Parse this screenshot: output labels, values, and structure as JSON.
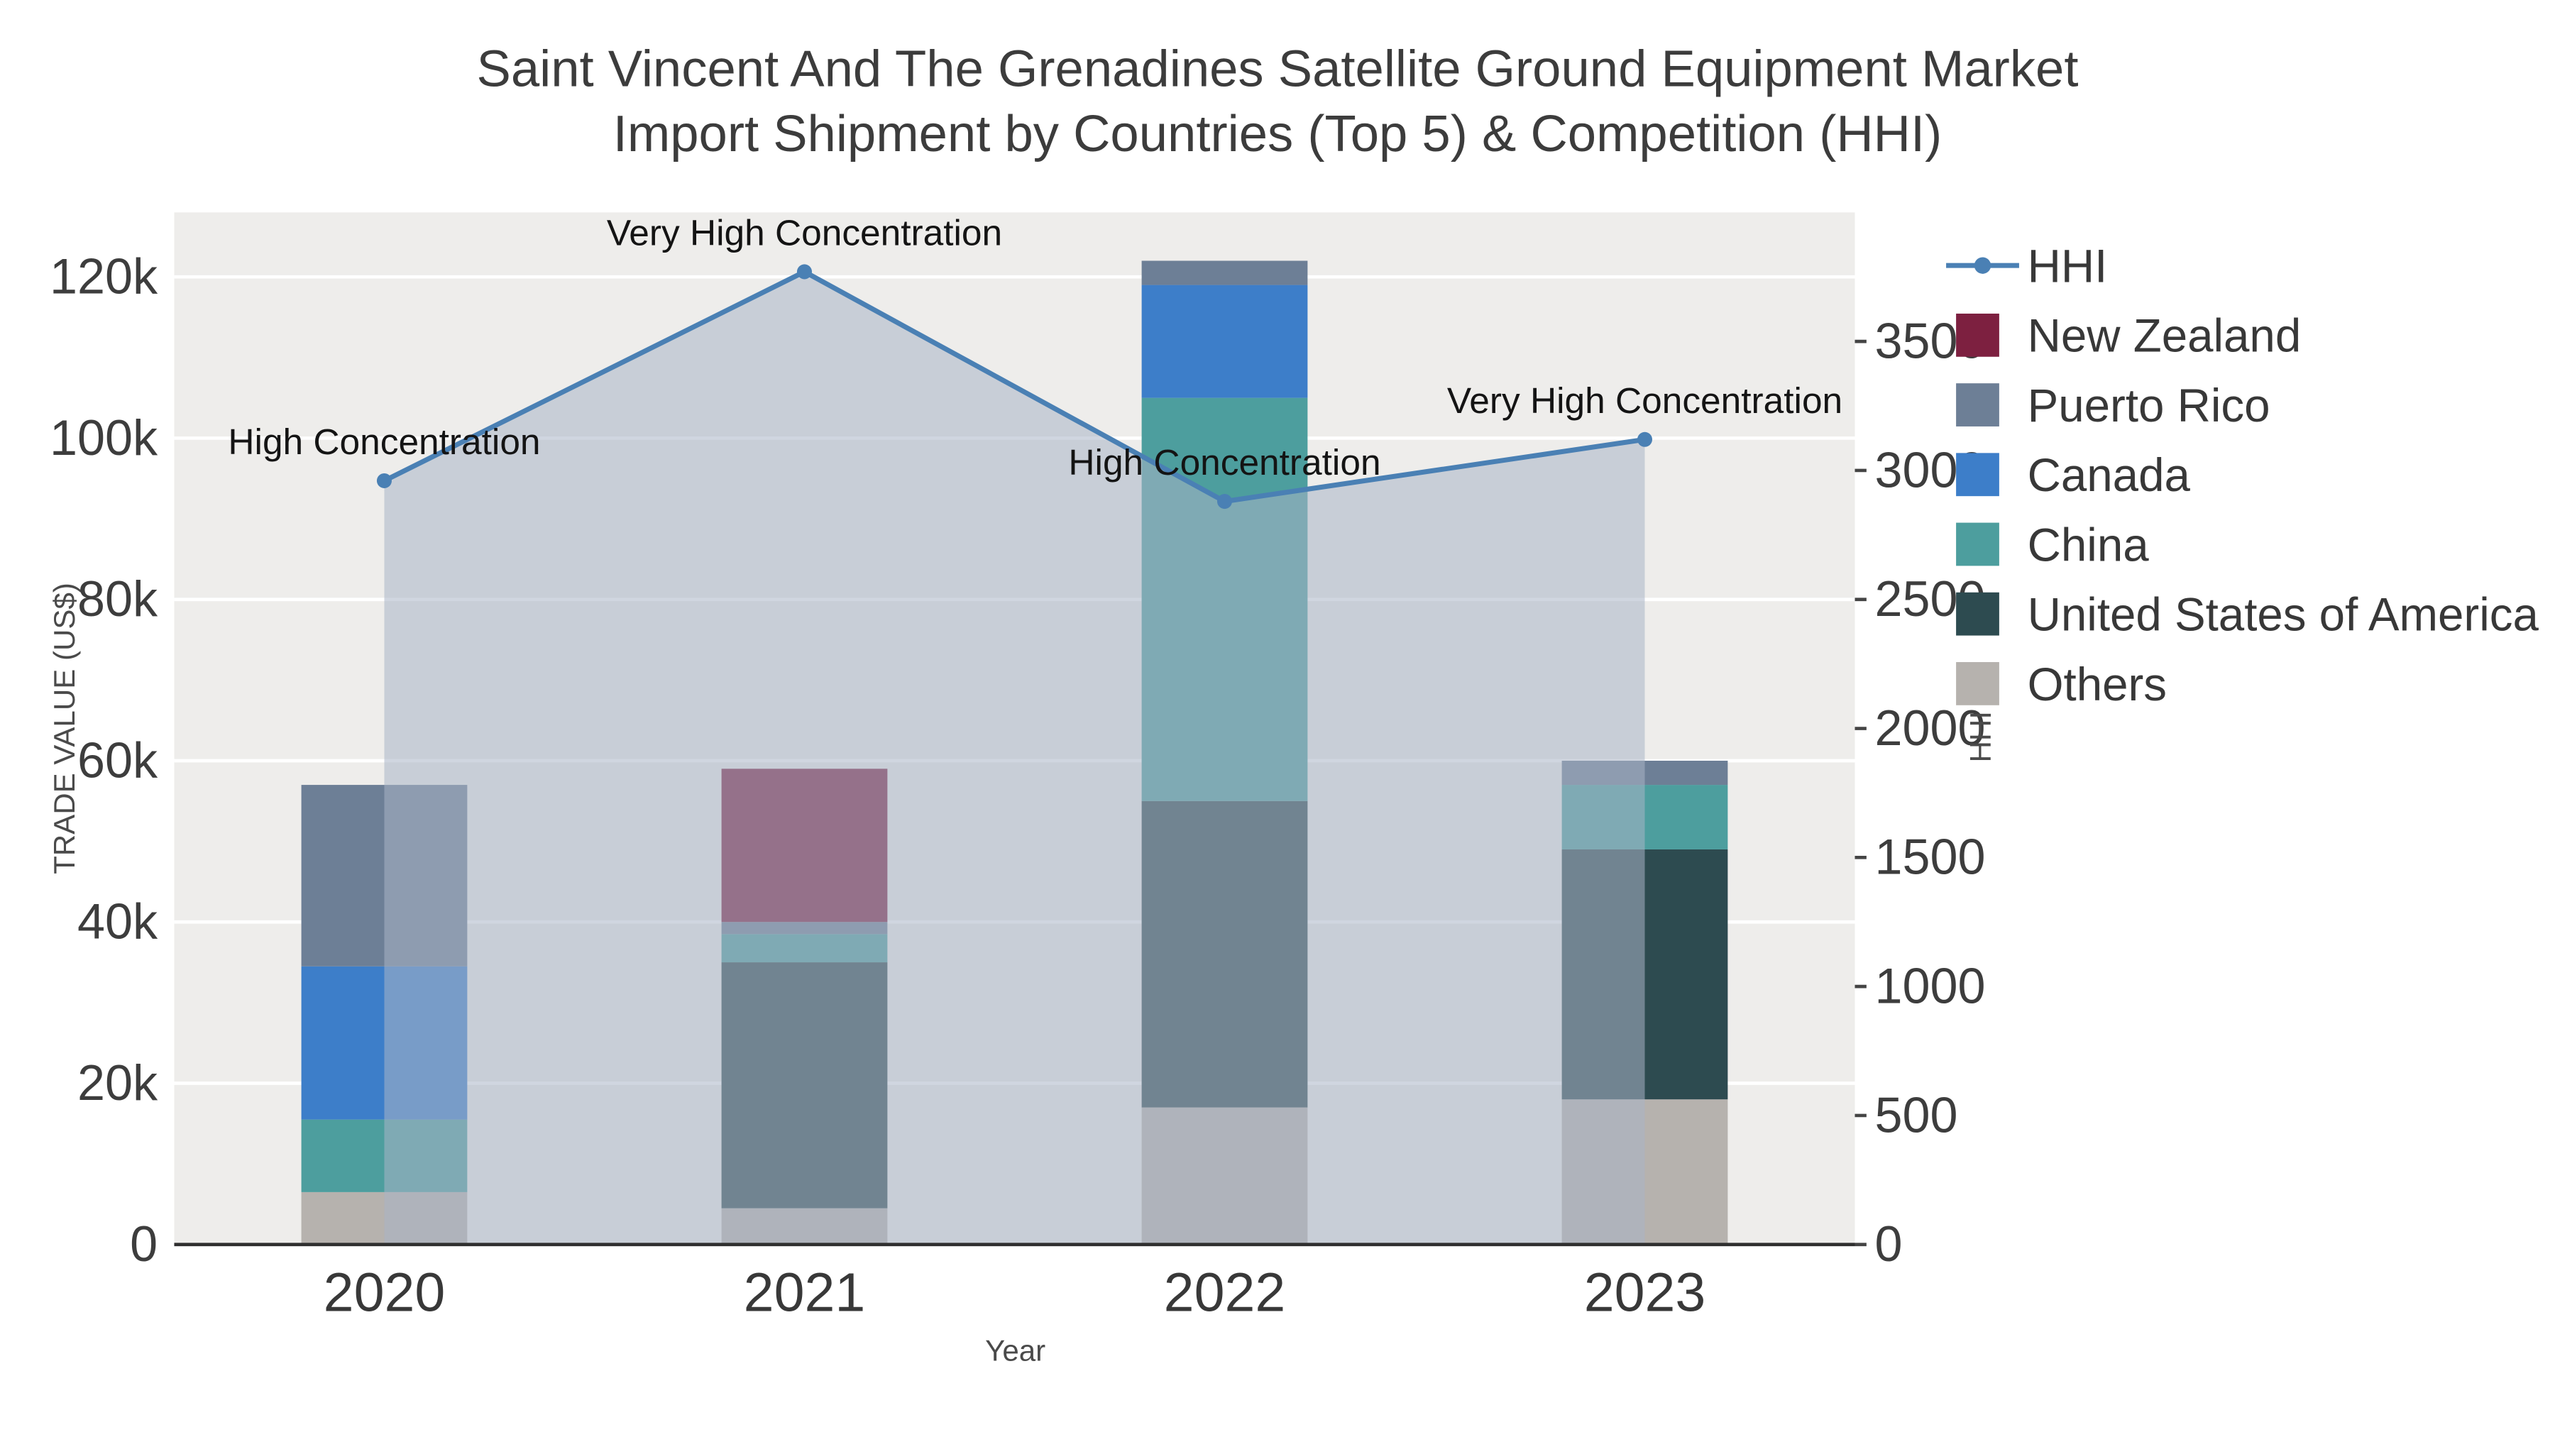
{
  "title": {
    "line1": "Saint Vincent And The Grenadines Satellite Ground Equipment Market",
    "line2": "Import Shipment by Countries (Top 5) & Competition (HHI)"
  },
  "axes": {
    "left_title": "TRADE VALUE (US$)",
    "right_title": "HHI",
    "x_title": "Year"
  },
  "chart_data": {
    "type": "bar+line",
    "x_categories": [
      "2020",
      "2021",
      "2022",
      "2023"
    ],
    "ylim_left": [
      0,
      128000
    ],
    "ylim_right": [
      0,
      4000
    ],
    "yticks_left": [
      {
        "value": 0,
        "label": "0"
      },
      {
        "value": 20000,
        "label": "20k"
      },
      {
        "value": 40000,
        "label": "40k"
      },
      {
        "value": 60000,
        "label": "60k"
      },
      {
        "value": 80000,
        "label": "80k"
      },
      {
        "value": 100000,
        "label": "100k"
      },
      {
        "value": 120000,
        "label": "120k"
      }
    ],
    "yticks_right": [
      {
        "value": 0,
        "label": "0"
      },
      {
        "value": 500,
        "label": "500"
      },
      {
        "value": 1000,
        "label": "1000"
      },
      {
        "value": 1500,
        "label": "1500"
      },
      {
        "value": 2000,
        "label": "2000"
      },
      {
        "value": 2500,
        "label": "2500"
      },
      {
        "value": 3000,
        "label": "3000"
      },
      {
        "value": 3500,
        "label": "3500"
      }
    ],
    "bar_series": [
      {
        "name": "Others",
        "color": "#b6b2ae",
        "values": [
          6500,
          4500,
          17000,
          18000
        ]
      },
      {
        "name": "United States of America",
        "color": "#2d4b50",
        "values": [
          0,
          30500,
          38000,
          31000
        ]
      },
      {
        "name": "China",
        "color": "#4d9e9e",
        "values": [
          9000,
          3500,
          50000,
          8000
        ]
      },
      {
        "name": "Canada",
        "color": "#3d7ec9",
        "values": [
          19000,
          0,
          14000,
          0
        ]
      },
      {
        "name": "Puerto Rico",
        "color": "#6d7f96",
        "values": [
          22500,
          1500,
          3000,
          3000
        ]
      },
      {
        "name": "New Zealand",
        "color": "#7d2040",
        "values": [
          0,
          19000,
          0,
          0
        ]
      }
    ],
    "hhi_series": {
      "name": "HHI",
      "line_color": "#4a80b4",
      "fill_color": "#a9b4c6",
      "fill_opacity": 0.55,
      "values": [
        2960,
        3770,
        2880,
        3120
      ],
      "annotations": [
        "High Concentration",
        "Very High Concentration",
        "High Concentration",
        "Very High Concentration"
      ]
    },
    "legend_order": [
      "HHI",
      "New Zealand",
      "Puerto Rico",
      "Canada",
      "China",
      "United States of America",
      "Others"
    ],
    "plot_bg": "#eeedeb",
    "grid_color": "#ffffff",
    "axis_line_color": "#2f2f2f"
  }
}
